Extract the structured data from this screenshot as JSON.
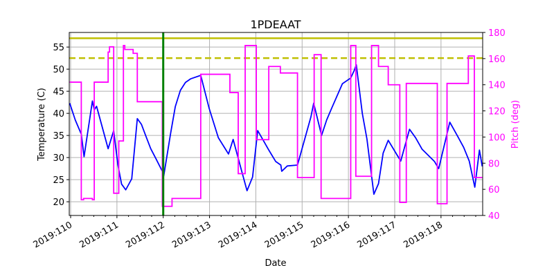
{
  "chart_data": {
    "type": "line",
    "title": "1PDEAAT",
    "xlabel": "Date",
    "ylabel": "Temperature (C)",
    "y2label": "Pitch (deg)",
    "xlim": [
      109.97,
      118.9
    ],
    "ylim": [
      16.9,
      58.3
    ],
    "y2lim": [
      40,
      180
    ],
    "grid": true,
    "x_ticks": [
      110,
      111,
      112,
      113,
      114,
      115,
      116,
      117,
      118
    ],
    "x_tick_labels": [
      "2019:110",
      "2019:111",
      "2019:112",
      "2019:113",
      "2019:114",
      "2019:115",
      "2019:116",
      "2019:117",
      "2019:118"
    ],
    "y_ticks": [
      20,
      25,
      30,
      35,
      40,
      45,
      50,
      55
    ],
    "y_tick_labels": [
      "20",
      "25",
      "30",
      "35",
      "40",
      "45",
      "50",
      "55"
    ],
    "y2_ticks": [
      40,
      60,
      80,
      100,
      120,
      140,
      160,
      180
    ],
    "y2_tick_labels": [
      "40",
      "60",
      "80",
      "100",
      "120",
      "140",
      "160",
      "180"
    ],
    "colors": {
      "temperature": "#0000ff",
      "pitch": "#ff00ff",
      "limit": "#bfbf00",
      "marker": "#008000",
      "pitch_axis": "#ff00ff"
    },
    "hlines": [
      {
        "y": 57.0,
        "style": "solid"
      },
      {
        "y": 52.5,
        "style": "dashed"
      }
    ],
    "vline": {
      "x": 112.0
    },
    "series": [
      {
        "axis": "left",
        "x": [
          109.98,
          110.1,
          110.23,
          110.29,
          110.38,
          110.47,
          110.51,
          110.56,
          110.68,
          110.81,
          110.93,
          111.02,
          111.1,
          111.19,
          111.32,
          111.44,
          111.53,
          111.62,
          111.73,
          111.84,
          111.98,
          112.01,
          112.16,
          112.26,
          112.37,
          112.48,
          112.59,
          112.81,
          112.99,
          113.19,
          113.41,
          113.51,
          113.68,
          113.81,
          113.93,
          114.04,
          114.28,
          114.43,
          114.54,
          114.56,
          114.68,
          114.9,
          115.19,
          115.25,
          115.42,
          115.53,
          115.64,
          115.87,
          116.05,
          116.13,
          116.17,
          116.3,
          116.4,
          116.55,
          116.65,
          116.75,
          116.86,
          117.13,
          117.32,
          117.45,
          117.59,
          117.86,
          117.95,
          118.19,
          118.35,
          118.49,
          118.61,
          118.73,
          118.83,
          118.89
        ],
        "values": [
          42.3,
          38.5,
          35.3,
          30.2,
          36.5,
          42.8,
          40.8,
          41.6,
          37.0,
          32.0,
          36.1,
          28.4,
          24.0,
          22.7,
          25.2,
          38.8,
          37.5,
          35.0,
          32.0,
          29.8,
          26.9,
          25.8,
          35.5,
          41.5,
          45.2,
          47.0,
          47.8,
          48.6,
          41.2,
          34.5,
          30.8,
          34.1,
          27.5,
          22.5,
          25.6,
          36.1,
          31.7,
          29.1,
          28.3,
          26.9,
          28.1,
          28.3,
          39.2,
          42.3,
          35.0,
          38.5,
          41.2,
          46.7,
          48.0,
          49.8,
          51.0,
          40.0,
          34.2,
          21.7,
          24.1,
          31.0,
          33.9,
          29.2,
          36.4,
          34.5,
          31.9,
          29.1,
          27.5,
          38.0,
          35.0,
          32.3,
          29.2,
          23.3,
          31.7,
          28.0
        ]
      },
      {
        "axis": "right",
        "step": "post",
        "x": [
          109.98,
          110.23,
          110.28,
          110.47,
          110.51,
          110.81,
          110.84,
          110.93,
          111.04,
          111.14,
          111.17,
          111.35,
          111.44,
          111.98,
          112.19,
          112.81,
          113.44,
          113.62,
          113.77,
          114.01,
          114.28,
          114.53,
          114.9,
          115.26,
          115.41,
          116.05,
          116.16,
          116.5,
          116.65,
          116.86,
          117.11,
          117.25,
          117.92,
          118.13,
          118.59,
          118.72,
          118.89
        ],
        "values": [
          142,
          52,
          53,
          52,
          142,
          165,
          169,
          57,
          97,
          170,
          167,
          164,
          127,
          47,
          53,
          148,
          134,
          72,
          170,
          98,
          154,
          149,
          69,
          163,
          53,
          170,
          70,
          170,
          154,
          140,
          50,
          141,
          49,
          141,
          162,
          69,
          69
        ]
      }
    ]
  }
}
